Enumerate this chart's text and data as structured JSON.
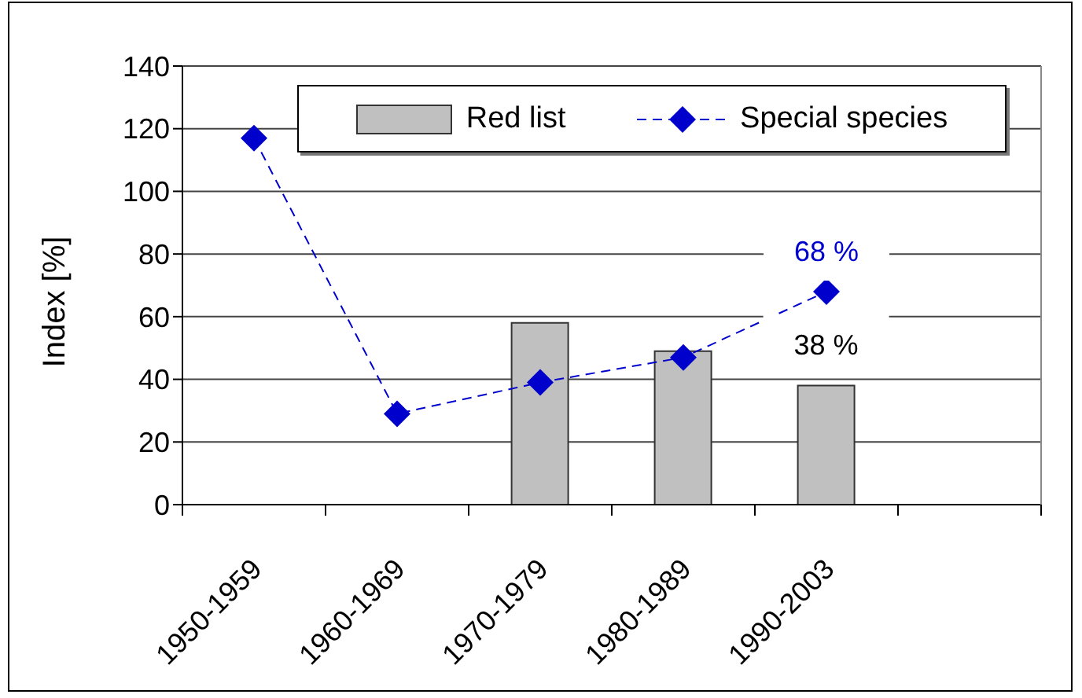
{
  "chart_data": {
    "type": "bar",
    "ylabel": "Index [%]",
    "categories": [
      "1950-1959",
      "1960-1969",
      "1970-1979",
      "1980-1989",
      "1990-2003",
      null
    ],
    "series": [
      {
        "name": "Red list",
        "color": "#c0c0c0",
        "values": [
          null,
          null,
          58,
          49,
          38,
          null
        ],
        "value_labels": [
          null,
          null,
          null,
          null,
          "38 %",
          null
        ]
      },
      {
        "name": "Special species",
        "type": "line",
        "color": "#0000cc",
        "values": [
          117,
          29,
          39,
          47,
          68,
          null
        ],
        "marker": "diamond",
        "line_style": "dashed",
        "value_labels": [
          null,
          null,
          null,
          null,
          "68 %",
          null
        ]
      }
    ],
    "ylim": [
      0,
      140
    ],
    "yticks": [
      0,
      20,
      40,
      60,
      80,
      100,
      120,
      140
    ],
    "grid": "y",
    "legend": "top"
  }
}
